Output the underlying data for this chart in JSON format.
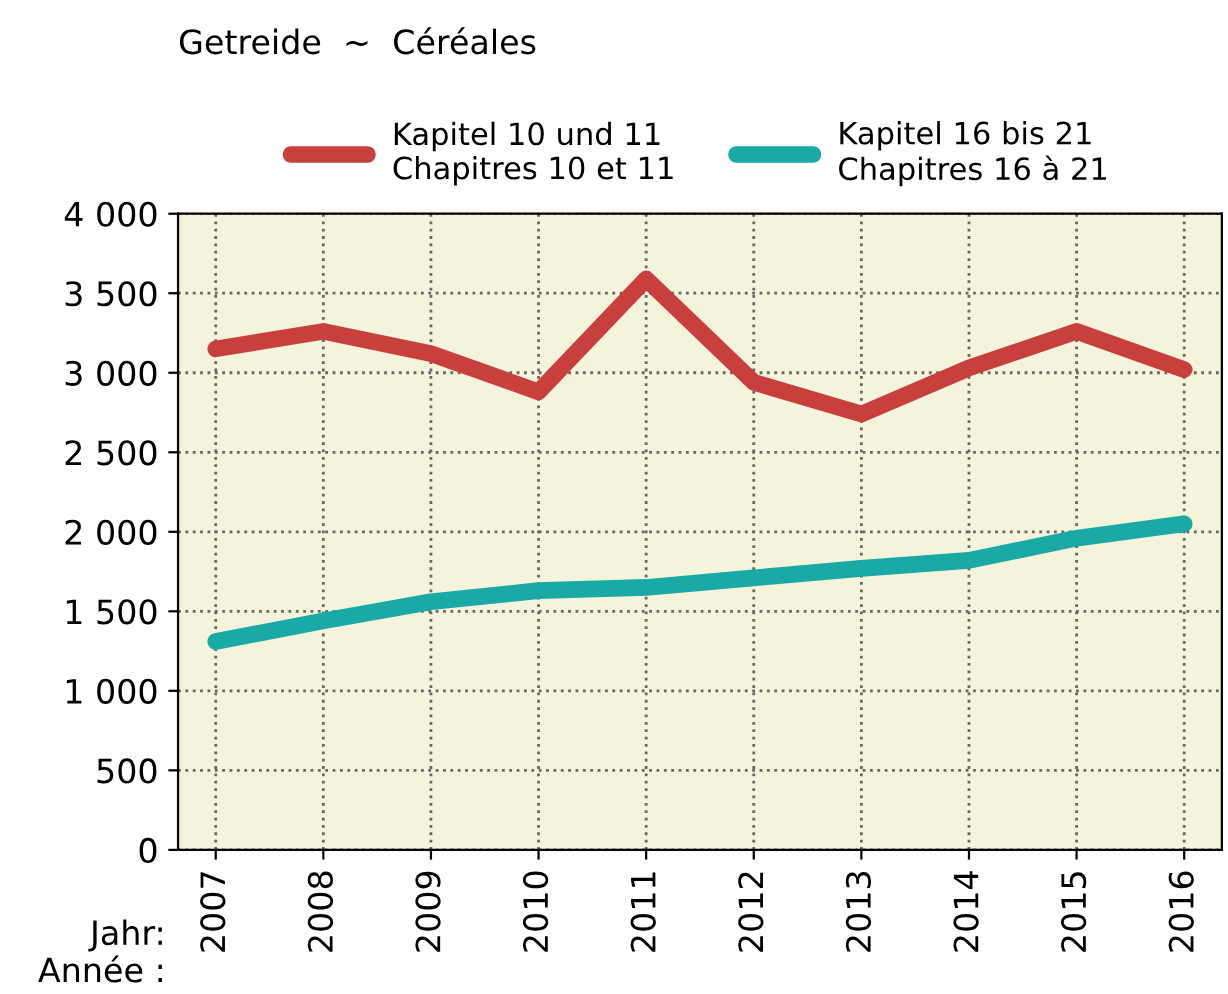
{
  "chart_data": {
    "type": "line",
    "title": "Getreide  ~  Céréales",
    "categories": [
      "2007",
      "2008",
      "2009",
      "2010",
      "2011",
      "2012",
      "2013",
      "2014",
      "2015",
      "2016"
    ],
    "series": [
      {
        "name": "Kapitel 10 und 11\nChapitres 10 et 11",
        "color": "#c8403e",
        "values": [
          3150,
          3260,
          3120,
          2880,
          3590,
          2940,
          2740,
          3030,
          3260,
          3020
        ]
      },
      {
        "name": "Kapitel 16 bis 21\nChapitres 16 à 21",
        "color": "#1aa9a4",
        "values": [
          1310,
          1440,
          1560,
          1630,
          1650,
          1710,
          1770,
          1820,
          1960,
          2050
        ]
      }
    ],
    "ylim": [
      0,
      4000
    ],
    "yticks": [
      0,
      500,
      {
        "value": 1000,
        "label": "1 000"
      },
      {
        "value": 1500,
        "label": "1 500"
      },
      {
        "value": 2000,
        "label": "2 000"
      },
      {
        "value": 2500,
        "label": "2 500"
      },
      {
        "value": 3000,
        "label": "3 000"
      },
      {
        "value": 3500,
        "label": "3 500"
      },
      {
        "value": 4000,
        "label": "4 000"
      }
    ],
    "annotations": [
      "Jahr:\nAnnée :"
    ],
    "grid": true,
    "legend": "top",
    "marker": "none",
    "line_style": "solid"
  }
}
